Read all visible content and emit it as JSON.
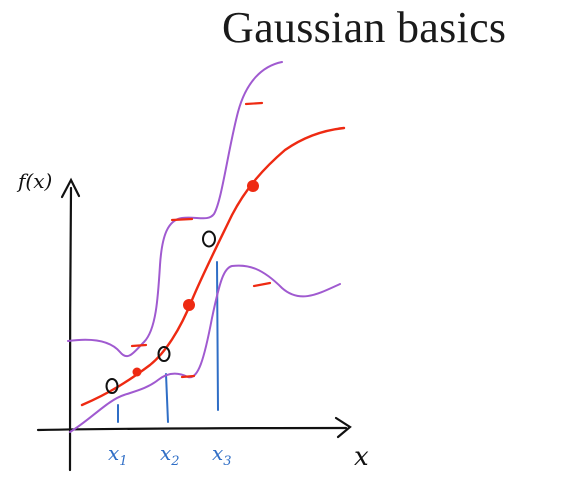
{
  "slide": {
    "title": "Gaussian basics"
  },
  "plot": {
    "y_axis_label": "f(x)",
    "x_axis_label": "x",
    "x_ticks": [
      {
        "base": "x",
        "sub": "1"
      },
      {
        "base": "x",
        "sub": "2"
      },
      {
        "base": "x",
        "sub": "3"
      }
    ]
  },
  "colors": {
    "axis": "#111111",
    "mean_curve": "#ee2a12",
    "bound_curves": "#a05ad0",
    "samples": "#2f6ec6",
    "observations": "#111111",
    "mean_markers": "#ee2a12"
  }
}
